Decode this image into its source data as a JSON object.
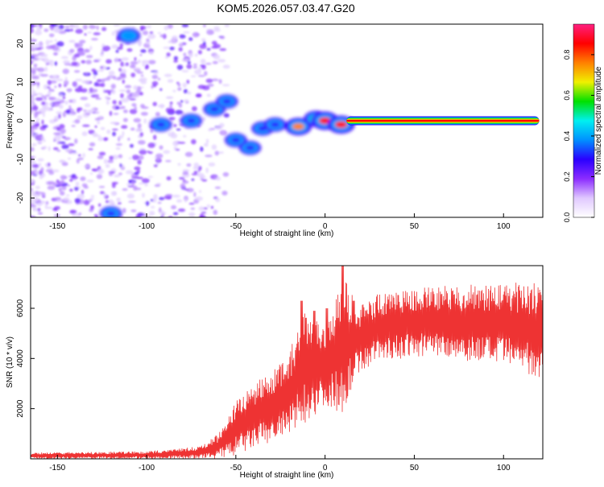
{
  "title": "KOM5.2026.057.03.47.G20",
  "chart_data": [
    {
      "type": "heatmap",
      "title": "KOM5.2026.057.03.47.G20",
      "xlabel": "Height of straight line (km)",
      "ylabel": "Frequency (Hz)",
      "xlim": [
        -165,
        122
      ],
      "ylim": [
        -25,
        25
      ],
      "xticks": [
        -150,
        -100,
        -50,
        0,
        50,
        100
      ],
      "yticks": [
        -20,
        -10,
        0,
        10,
        20
      ],
      "colorbar": {
        "label": "Normalized spectral amplitude",
        "range": [
          0,
          0.95
        ],
        "ticks": [
          "0.0",
          "0.2",
          "0.4",
          "0.6",
          "0.8"
        ],
        "colors": [
          "#ffffff",
          "#e0c8ff",
          "#8b2cff",
          "#2a00ff",
          "#0090ff",
          "#00f0f0",
          "#00e000",
          "#f0f000",
          "#ff8000",
          "#ff0000",
          "#ff2080"
        ]
      },
      "carrier": {
        "x_start": 12,
        "x_end": 120,
        "frequency": 0,
        "amplitude": 0.95
      },
      "blobs": [
        {
          "x": -110,
          "y": 22,
          "amplitude": 0.4
        },
        {
          "x": -120,
          "y": -24,
          "amplitude": 0.3
        },
        {
          "x": -92,
          "y": -1,
          "amplitude": 0.3
        },
        {
          "x": -75,
          "y": 0,
          "amplitude": 0.28
        },
        {
          "x": -62,
          "y": 3,
          "amplitude": 0.3
        },
        {
          "x": -55,
          "y": 5,
          "amplitude": 0.28
        },
        {
          "x": -50,
          "y": -5,
          "amplitude": 0.3
        },
        {
          "x": -42,
          "y": -7,
          "amplitude": 0.28
        },
        {
          "x": -35,
          "y": -2,
          "amplitude": 0.3
        },
        {
          "x": -28,
          "y": -1,
          "amplitude": 0.32
        },
        {
          "x": -15,
          "y": -1.5,
          "amplitude": 0.75
        },
        {
          "x": -5,
          "y": 0.5,
          "amplitude": 0.55
        },
        {
          "x": 0,
          "y": 0,
          "amplitude": 0.85
        },
        {
          "x": 9,
          "y": -1,
          "amplitude": 0.82
        }
      ],
      "colors": {
        "axis": "#000000"
      }
    },
    {
      "type": "line",
      "xlabel": "Height of straight line (km)",
      "ylabel": "SNR (10 * v/v)",
      "xlim": [
        -165,
        122
      ],
      "ylim": [
        0,
        7700
      ],
      "xticks": [
        -150,
        -100,
        -50,
        0,
        50,
        100
      ],
      "yticks": [
        2000,
        4000,
        6000
      ],
      "series": [
        {
          "color": "#ee3333",
          "envelope": [
            {
              "x": -165,
              "low": 0,
              "high": 250
            },
            {
              "x": -100,
              "low": 0,
              "high": 300
            },
            {
              "x": -70,
              "low": 0,
              "high": 500
            },
            {
              "x": -60,
              "low": 0,
              "high": 1000
            },
            {
              "x": -50,
              "low": 100,
              "high": 2400
            },
            {
              "x": -40,
              "low": 400,
              "high": 3000
            },
            {
              "x": -30,
              "low": 600,
              "high": 3600
            },
            {
              "x": -20,
              "low": 900,
              "high": 4200
            },
            {
              "x": -13,
              "low": 1300,
              "high": 6200
            },
            {
              "x": 0,
              "low": 2100,
              "high": 5200
            },
            {
              "x": 10,
              "low": 1800,
              "high": 7500
            },
            {
              "x": 18,
              "low": 3400,
              "high": 6000
            },
            {
              "x": 30,
              "low": 3900,
              "high": 6600
            },
            {
              "x": 60,
              "low": 4100,
              "high": 6900
            },
            {
              "x": 100,
              "low": 3700,
              "high": 7000
            },
            {
              "x": 122,
              "low": 3200,
              "high": 7100
            }
          ],
          "spikes": [
            {
              "x": -13,
              "y": 6300
            },
            {
              "x": -6,
              "y": 5900
            },
            {
              "x": 1,
              "y": 6000
            },
            {
              "x": 10,
              "y": 7700
            },
            {
              "x": 16,
              "y": 6300
            }
          ]
        }
      ]
    }
  ]
}
